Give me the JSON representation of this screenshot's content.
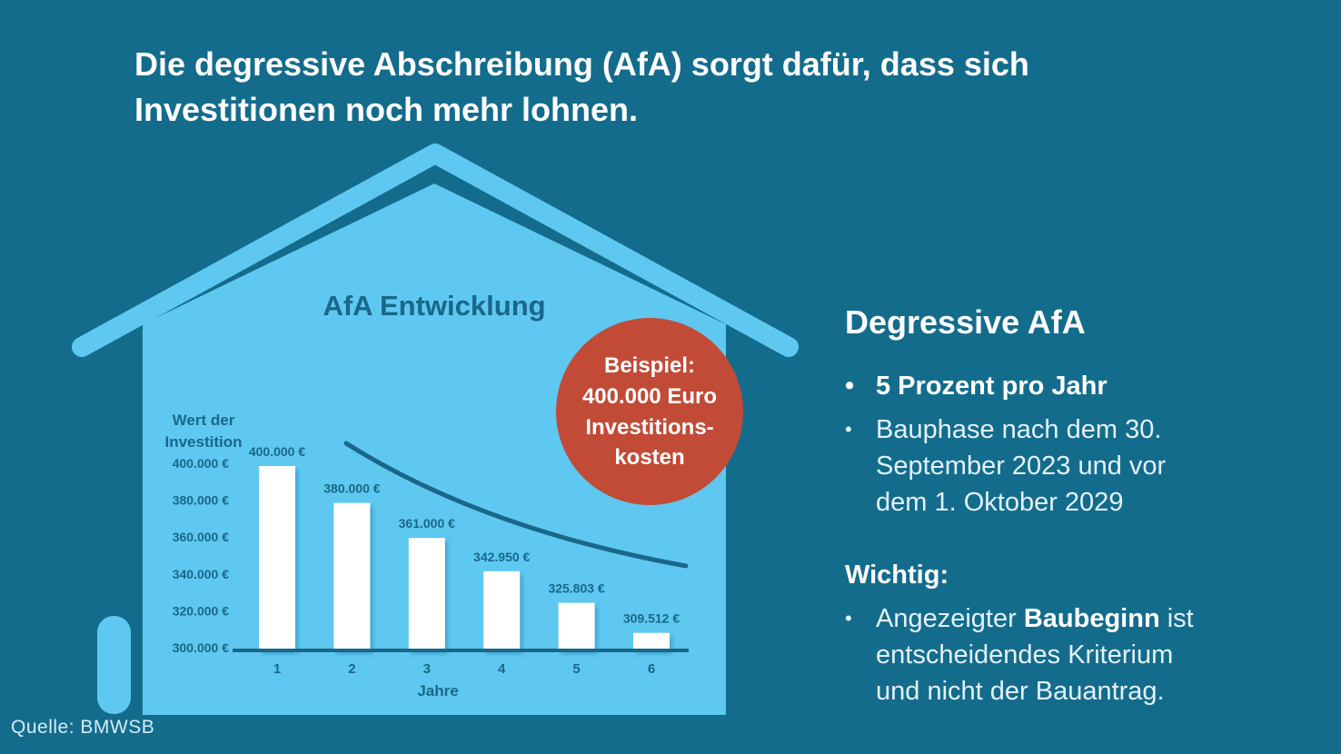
{
  "header": {
    "title_lines": [
      "Die degressive Abschreibung (AfA) sorgt dafür, dass sich",
      "Investitionen noch mehr lohnen."
    ]
  },
  "source": "Quelle: BMWSB",
  "colors": {
    "bg": "#146c8c",
    "house": "#5ec8f0",
    "ink": "#1a6789",
    "badge": "#c14b37",
    "text": "#ffffff",
    "subtext": "#e2f2fa"
  },
  "badge": {
    "lines": [
      "Beispiel:",
      "400.000 Euro",
      "Investitions-",
      "kosten"
    ]
  },
  "chart_data": {
    "type": "bar",
    "title": "AfA Entwicklung",
    "xlabel": "Jahre",
    "ylabel": "Wert der Investition",
    "ylabel_lines": [
      "Wert der",
      "Investition"
    ],
    "categories": [
      "1",
      "2",
      "3",
      "4",
      "5",
      "6"
    ],
    "values": [
      400000,
      380000,
      361000,
      342950,
      325803,
      309512
    ],
    "value_labels": [
      "400.000 €",
      "380.000 €",
      "361.000 €",
      "342.950 €",
      "325.803 €",
      "309.512 €"
    ],
    "ytick_values": [
      400000,
      380000,
      360000,
      340000,
      320000,
      300000
    ],
    "ytick_labels": [
      "400.000 €",
      "380.000 €",
      "360.000 €",
      "340.000 €",
      "320.000 €",
      "300.000 €"
    ],
    "ylim": [
      300000,
      400000
    ],
    "grid": "off",
    "legend": "none",
    "annotations": [
      "decaying trend curve over the bars",
      "Beispiel: 400.000 Euro Investitionskosten"
    ]
  },
  "panel": {
    "heading": "Degressive AfA",
    "bullets": [
      {
        "bold": true,
        "lines": [
          "5 Prozent pro Jahr"
        ]
      },
      {
        "bold": false,
        "lines": [
          "Bauphase nach dem 30.",
          "September 2023 und vor",
          "dem 1. Oktober 2029"
        ]
      }
    ],
    "subheading": "Wichtig:",
    "wichtig_bullet": {
      "line1_prefix": "Angezeigter ",
      "line1_bold": "Baubeginn",
      "line1_suffix": " ist",
      "line2": "entscheidendes Kriterium",
      "line3": "und nicht der Bauantrag."
    }
  }
}
